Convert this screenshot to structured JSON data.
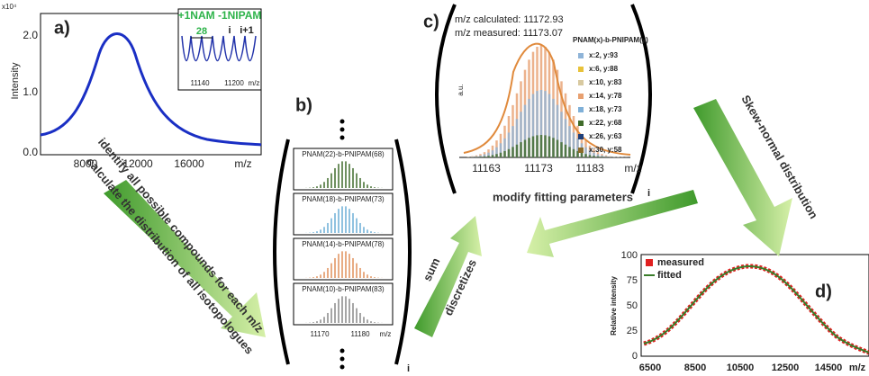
{
  "panel_a": {
    "label": "a)",
    "y_label": "Intensity",
    "y_exponent": "x10⁴",
    "yticks": [
      "2.0",
      "1.0",
      "0.0"
    ],
    "xticks": [
      "8000",
      "12000",
      "16000"
    ],
    "x_label": "m/z",
    "inset": {
      "title": "+1NAM -1NIPAM",
      "spacing": "28",
      "peak_i": "i",
      "peak_i1": "i+1",
      "xticks": [
        "11140",
        "11200"
      ],
      "x_label": "m/z"
    }
  },
  "panel_b": {
    "label": "b)",
    "spectra": [
      "PNAM(22)-b-PNIPAM(68)",
      "PNAM(18)-b-PNIPAM(73)",
      "PNAM(14)-b-PNIPAM(78)",
      "PNAM(10)-b-PNIPAM(83)"
    ],
    "xticks": [
      "11170",
      "11180"
    ],
    "x_label": "m/z",
    "index": "i"
  },
  "panel_c": {
    "label": "c)",
    "calculated": "m/z calculated: 11172.93",
    "measured": "m/z measured: 11173.07",
    "y_label": "a.u.",
    "legend_title": "PNAM(x)-b-PNIPAM(y)",
    "legend": [
      "x:2, y:93",
      "x:6, y:88",
      "x:10, y:83",
      "x:14, y:78",
      "x:18, y:73",
      "x:22, y:68",
      "x:26, y:63",
      "x:30, y:58"
    ],
    "xticks": [
      "11163",
      "11173",
      "11183"
    ],
    "x_label": "m/z",
    "index": "i"
  },
  "panel_d": {
    "label": "d)",
    "legend": [
      "measured",
      "fitted"
    ],
    "y_label": "Relative intensity",
    "yticks": [
      "100",
      "75",
      "50",
      "25",
      "0"
    ],
    "xticks": [
      "6500",
      "8500",
      "10500",
      "12500",
      "14500"
    ],
    "x_label": "m/z"
  },
  "arrows": {
    "identify": "identify all possible compounds for each m/z",
    "calculate": "calculate the distribution of all isotopologues",
    "sum": "sum",
    "discretizes": "discretizes",
    "modify": "modify fitting parameters",
    "skew": "Skew-normal distribution"
  }
}
